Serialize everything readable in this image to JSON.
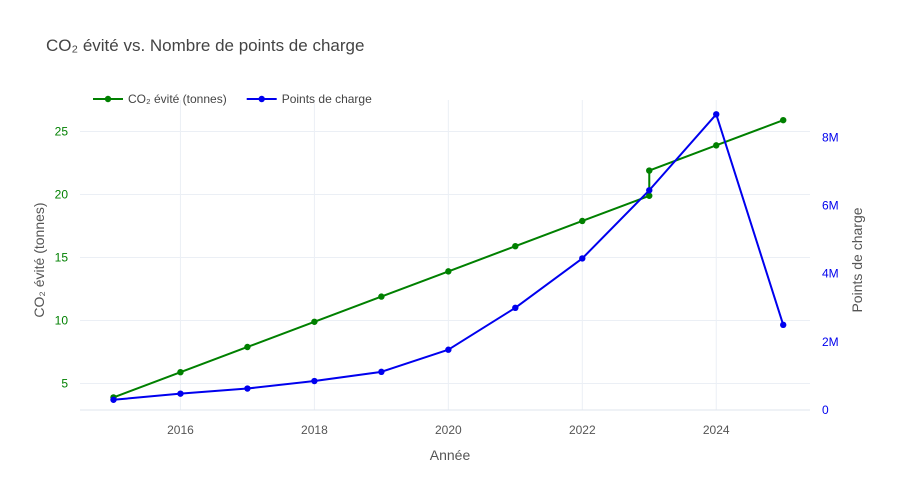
{
  "chart_data": {
    "type": "line",
    "title": "CO₂ évité vs. Nombre de points de charge",
    "xlabel": "Année",
    "x_ticks": [
      "2016",
      "2018",
      "2020",
      "2022",
      "2024"
    ],
    "xlim": [
      2014.5,
      2025.4
    ],
    "grid": true,
    "legend_placement": "top-left",
    "y_left": {
      "label": "CO₂ évité (tonnes)",
      "ylim": [
        2.9,
        27.5
      ],
      "ticks": [
        "5",
        "10",
        "15",
        "20",
        "25"
      ],
      "color": "#008000"
    },
    "y_right": {
      "label": "Points de charge",
      "ylim": [
        0,
        9100000
      ],
      "ticks": [
        "0",
        "2M",
        "4M",
        "6M",
        "8M"
      ],
      "color": "#0000ee"
    },
    "series": [
      {
        "name": "CO₂ évité (tonnes)",
        "axis": "left",
        "color": "#008000",
        "x": [
          2015,
          2016,
          2017,
          2018,
          2019,
          2020,
          2021,
          2022,
          2023,
          2023,
          2024,
          2025
        ],
        "y": [
          3.9,
          5.9,
          7.9,
          9.9,
          11.9,
          13.9,
          15.9,
          17.9,
          19.9,
          21.9,
          23.9,
          25.9
        ]
      },
      {
        "name": "Points de charge",
        "axis": "right",
        "color": "#0000ee",
        "x": [
          2015,
          2016,
          2017,
          2018,
          2019,
          2020,
          2021,
          2022,
          2023,
          2024,
          2025
        ],
        "y": [
          300000,
          480000,
          630000,
          850000,
          1120000,
          1770000,
          3000000,
          4450000,
          6450000,
          8680000,
          2500000
        ]
      }
    ]
  }
}
